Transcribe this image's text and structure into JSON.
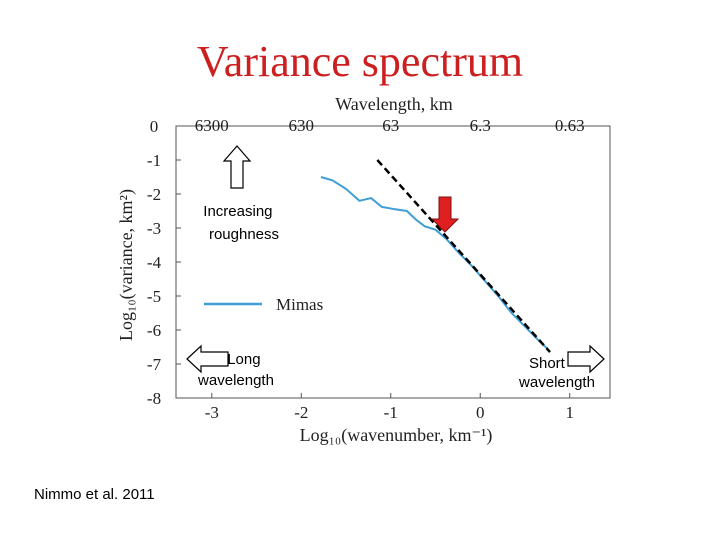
{
  "slide": {
    "title": "Variance spectrum",
    "citation": "Nimmo et al. 2011",
    "title_color": "#cc1f1f"
  },
  "chart_data": {
    "type": "line",
    "title": "",
    "xlabel": "Log₁₀(wavenumber, km⁻¹)",
    "ylabel": "Log₁₀(variance, km²)",
    "top_xlabel": "Wavelength, km",
    "xlim": [
      -3.4,
      1.45
    ],
    "ylim": [
      -8,
      0
    ],
    "x_ticks": [
      -3,
      -2,
      -1,
      0,
      1
    ],
    "y_ticks": [
      0,
      -1,
      -2,
      -3,
      -4,
      -5,
      -6,
      -7,
      -8
    ],
    "top_ticks": [
      {
        "x": -3,
        "label": "6300"
      },
      {
        "x": -2,
        "label": "630"
      },
      {
        "x": -1,
        "label": "63"
      },
      {
        "x": 0,
        "label": "6.3"
      },
      {
        "x": 1,
        "label": "0.63"
      }
    ],
    "grid": false,
    "series": [
      {
        "name": "Mimas",
        "color": "#3f9fd4",
        "x": [
          -1.78,
          -1.65,
          -1.5,
          -1.35,
          -1.22,
          -1.1,
          -0.95,
          -0.82,
          -0.72,
          -0.62,
          -0.5,
          -0.38,
          -0.25,
          -0.1,
          0.05,
          0.2,
          0.35,
          0.5,
          0.65,
          0.75
        ],
        "y": [
          -1.5,
          -1.6,
          -1.85,
          -2.2,
          -2.12,
          -2.38,
          -2.45,
          -2.5,
          -2.75,
          -2.95,
          -3.05,
          -3.32,
          -3.7,
          -4.1,
          -4.55,
          -5.0,
          -5.5,
          -5.9,
          -6.3,
          -6.55
        ]
      }
    ],
    "fit_line": {
      "x": [
        -1.15,
        0.78
      ],
      "y": [
        -1.0,
        -6.65
      ],
      "color": "#000000",
      "style": "dashed"
    },
    "legend": {
      "placement": "lower-left",
      "entries": [
        "Mimas"
      ]
    },
    "annotations": [
      {
        "text": [
          "Increasing",
          "roughness"
        ],
        "arrow": "up",
        "color": "#ffffff"
      },
      {
        "text": [
          "Long",
          "wavelength"
        ],
        "arrow": "left",
        "color": "#ffffff"
      },
      {
        "text": [
          "Short",
          "wavelength"
        ],
        "arrow": "right",
        "color": "#ffffff"
      },
      {
        "text": [],
        "arrow": "down",
        "color": "#e02020"
      }
    ]
  }
}
